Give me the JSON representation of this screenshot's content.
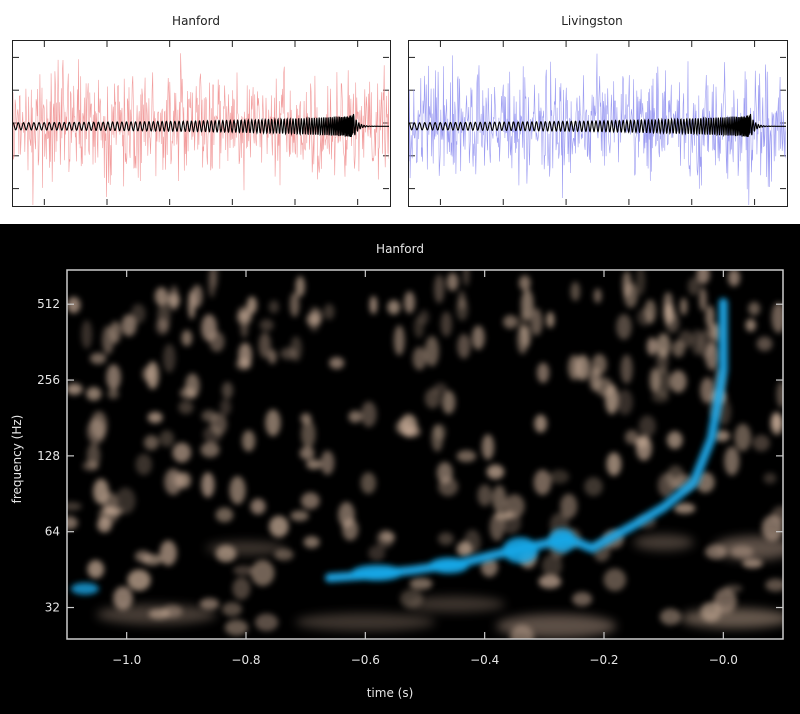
{
  "chart_data": [
    {
      "type": "line",
      "title": "Hanford",
      "series": [
        {
          "role": "noisy strain",
          "color": "#f08c8c"
        },
        {
          "role": "model waveform",
          "color": "#000000"
        }
      ],
      "x_tick_count": 6,
      "y_tick_count": 5
    },
    {
      "type": "line",
      "title": "Livingston",
      "series": [
        {
          "role": "noisy strain",
          "color": "#8c8cf0"
        },
        {
          "role": "model waveform",
          "color": "#000000"
        }
      ],
      "x_tick_count": 6,
      "y_tick_count": 5
    },
    {
      "type": "heatmap",
      "title": "Hanford",
      "xlabel": "time (s)",
      "ylabel": "frequency (Hz)",
      "xlim": [
        -1.1,
        0.1
      ],
      "ylim": [
        24,
        700
      ],
      "yscale": "log2",
      "x_ticks": [
        -1.0,
        -0.8,
        -0.6,
        -0.4,
        -0.2,
        0.0
      ],
      "x_tick_labels": [
        "−1.0",
        "−0.8",
        "−0.6",
        "−0.4",
        "−0.2",
        "−0.0"
      ],
      "y_ticks": [
        32,
        64,
        128,
        256,
        512
      ],
      "y_tick_labels": [
        "32",
        "64",
        "128",
        "256",
        "512"
      ],
      "background_color": "#000000",
      "noise_color": "#c9ad98",
      "signal_color": "#1aa6e6",
      "chirp_track": [
        {
          "t": -0.66,
          "f": 42
        },
        {
          "t": -0.6,
          "f": 43
        },
        {
          "t": -0.52,
          "f": 45
        },
        {
          "t": -0.44,
          "f": 48
        },
        {
          "t": -0.38,
          "f": 52
        },
        {
          "t": -0.32,
          "f": 56
        },
        {
          "t": -0.26,
          "f": 60
        },
        {
          "t": -0.22,
          "f": 55
        },
        {
          "t": -0.15,
          "f": 68
        },
        {
          "t": -0.1,
          "f": 80
        },
        {
          "t": -0.05,
          "f": 100
        },
        {
          "t": -0.02,
          "f": 150
        },
        {
          "t": 0.0,
          "f": 280
        },
        {
          "t": 0.0,
          "f": 520
        }
      ]
    }
  ]
}
